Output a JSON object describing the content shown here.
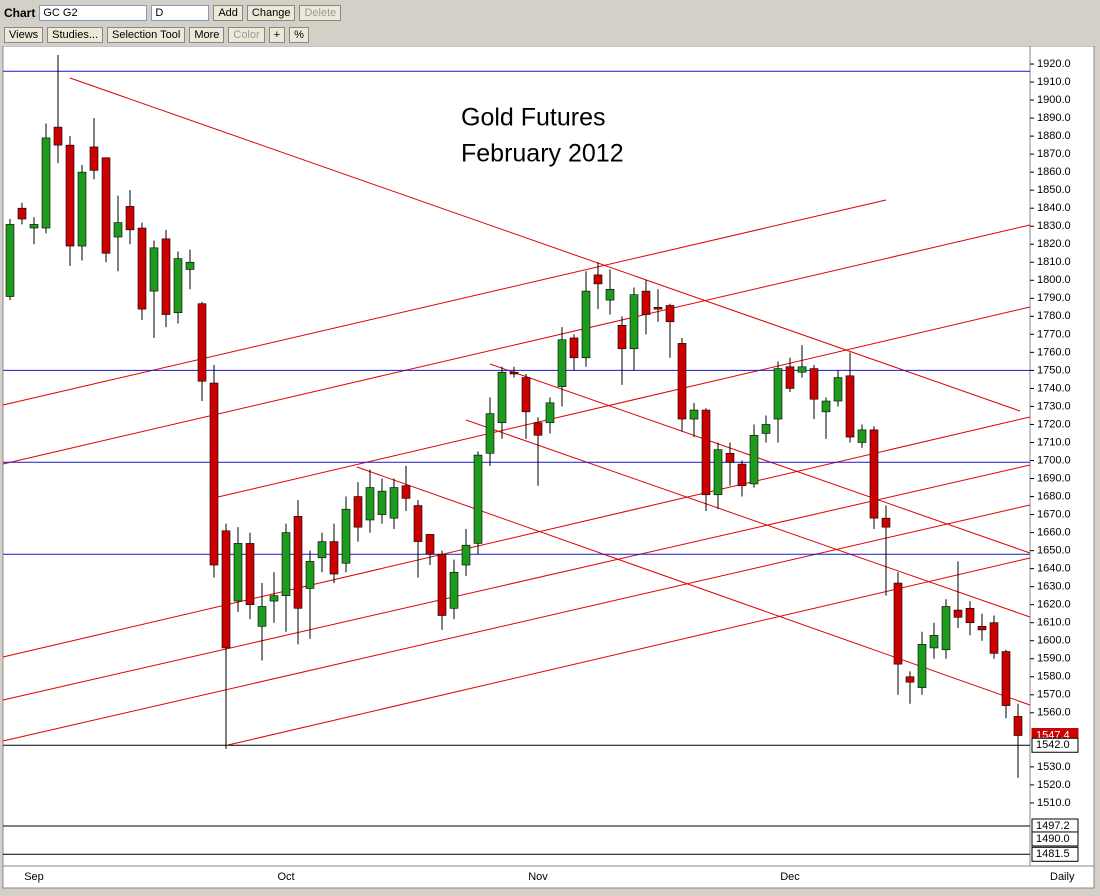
{
  "toolbar": {
    "chart_label": "Chart",
    "symbol": "GC G2",
    "period": "D",
    "buttons": [
      "Add",
      "Change",
      "Delete"
    ],
    "tools": [
      "Views",
      "Studies...",
      "Selection Tool",
      "More",
      "Color",
      "+",
      "%"
    ]
  },
  "chart_data": {
    "type": "candlestick",
    "annotations": [
      "Gold Futures",
      "February 2012"
    ],
    "categories": [
      null,
      null,
      "Sep",
      null,
      null,
      null,
      null,
      null,
      null,
      null,
      null,
      null,
      null,
      null,
      null,
      null,
      null,
      null,
      null,
      null,
      null,
      null,
      null,
      "Oct",
      null,
      null,
      null,
      null,
      null,
      null,
      null,
      null,
      null,
      null,
      null,
      null,
      null,
      null,
      null,
      null,
      null,
      null,
      null,
      null,
      "Nov",
      null,
      null,
      null,
      null,
      null,
      null,
      null,
      null,
      null,
      null,
      null,
      null,
      null,
      null,
      null,
      null,
      null,
      null,
      null,
      null,
      "Dec",
      null,
      null,
      null,
      null,
      null,
      null,
      null,
      null,
      null,
      null,
      null,
      null,
      null,
      null,
      null,
      null,
      null,
      null,
      null
    ],
    "period_label": "Daily",
    "up_color": "#1e9a1e",
    "down_color": "#cc0000",
    "open": [
      1791,
      1840,
      1829,
      1829,
      1885,
      1875,
      1819,
      1874,
      1868,
      1824,
      1841,
      1829,
      1794,
      1823,
      1782,
      1806,
      1787,
      1743,
      1661,
      1622,
      1654,
      1608,
      1622,
      1625,
      1669,
      1629,
      1646,
      1655,
      1643,
      1680,
      1667,
      1670,
      1668,
      1686,
      1675,
      1659,
      1648,
      1618,
      1642,
      1654,
      1704,
      1721,
      1749,
      1746,
      1721,
      1721,
      1741,
      1768,
      1757,
      1803,
      1789,
      1775,
      1762,
      1794,
      1785,
      1786,
      1765,
      1723,
      1728,
      1681,
      1704,
      1698,
      1687,
      1715,
      1723,
      1752,
      1749,
      1751,
      1727,
      1733,
      1747,
      1710,
      1717,
      1668,
      1632,
      1580,
      1574,
      1596,
      1595,
      1617,
      1618,
      1608,
      1610,
      1594,
      1558
    ],
    "high": [
      1834,
      1843,
      1835,
      1887,
      1925,
      1880,
      1864,
      1890,
      1868,
      1847,
      1850,
      1832,
      1822,
      1828,
      1816,
      1817,
      1788,
      1753,
      1665,
      1663,
      1660,
      1632,
      1638,
      1665,
      1678,
      1650,
      1660,
      1665,
      1680,
      1688,
      1695,
      1690,
      1690,
      1697,
      1678,
      1659,
      1650,
      1645,
      1662,
      1705,
      1735,
      1752,
      1752,
      1748,
      1724,
      1735,
      1774,
      1770,
      1805,
      1810,
      1806,
      1780,
      1796,
      1800,
      1795,
      1787,
      1768,
      1732,
      1729,
      1710,
      1710,
      1700,
      1720,
      1725,
      1755,
      1757,
      1764,
      1753,
      1735,
      1750,
      1760,
      1720,
      1719,
      1675,
      1638,
      1583,
      1605,
      1610,
      1623,
      1644,
      1622,
      1615,
      1614,
      1595,
      1565
    ],
    "low": [
      1789,
      1831,
      1820,
      1826,
      1865,
      1808,
      1811,
      1856,
      1810,
      1805,
      1820,
      1778,
      1768,
      1774,
      1776,
      1795,
      1733,
      1635,
      1540,
      1616,
      1612,
      1589,
      1610,
      1605,
      1598,
      1601,
      1638,
      1632,
      1638,
      1655,
      1660,
      1665,
      1662,
      1672,
      1635,
      1642,
      1606,
      1612,
      1636,
      1648,
      1697,
      1712,
      1746,
      1712,
      1686,
      1715,
      1730,
      1750,
      1752,
      1784,
      1781,
      1742,
      1750,
      1770,
      1777,
      1757,
      1716,
      1713,
      1672,
      1673,
      1686,
      1680,
      1685,
      1710,
      1710,
      1738,
      1746,
      1723,
      1712,
      1730,
      1710,
      1707,
      1662,
      1625,
      1570,
      1565,
      1570,
      1590,
      1590,
      1607,
      1603,
      1600,
      1590,
      1557,
      1524
    ],
    "close": [
      1831,
      1834,
      1831,
      1879,
      1875,
      1819,
      1860,
      1861,
      1815,
      1832,
      1828,
      1784,
      1818,
      1781,
      1812,
      1810,
      1744,
      1642,
      1596,
      1654,
      1620,
      1619,
      1625,
      1660,
      1618,
      1644,
      1655,
      1637,
      1673,
      1663,
      1685,
      1683,
      1685,
      1679,
      1655,
      1648,
      1614,
      1638,
      1653,
      1703,
      1726,
      1749,
      1748,
      1727,
      1714,
      1732,
      1767,
      1757,
      1794,
      1798,
      1795,
      1762,
      1792,
      1781,
      1784,
      1777,
      1723,
      1728,
      1681,
      1706,
      1699,
      1686,
      1714,
      1720,
      1751,
      1740,
      1752,
      1734,
      1733,
      1746,
      1713,
      1717,
      1668,
      1663,
      1587,
      1577,
      1598,
      1603,
      1619,
      1613,
      1610,
      1606,
      1593,
      1564,
      1547.4
    ],
    "ylim": [
      1475,
      1930
    ],
    "yticks": [
      {
        "value": 1510,
        "label": "1510.0"
      },
      {
        "value": 1520,
        "label": "1520.0"
      },
      {
        "value": 1530,
        "label": "1530.0"
      },
      {
        "value": 1560,
        "label": "1560.0"
      },
      {
        "value": 1570,
        "label": "1570.0"
      },
      {
        "value": 1580,
        "label": "1580.0"
      },
      {
        "value": 1590,
        "label": "1590.0"
      },
      {
        "value": 1600,
        "label": "1600.0"
      },
      {
        "value": 1610,
        "label": "1610.0"
      },
      {
        "value": 1620,
        "label": "1620.0"
      },
      {
        "value": 1630,
        "label": "1630.0"
      },
      {
        "value": 1640,
        "label": "1640.0"
      },
      {
        "value": 1650,
        "label": "1650.0"
      },
      {
        "value": 1660,
        "label": "1660.0"
      },
      {
        "value": 1670,
        "label": "1670.0"
      },
      {
        "value": 1680,
        "label": "1680.0"
      },
      {
        "value": 1690,
        "label": "1690.0"
      },
      {
        "value": 1700,
        "label": "1700.0"
      },
      {
        "value": 1710,
        "label": "1710.0"
      },
      {
        "value": 1720,
        "label": "1720.0"
      },
      {
        "value": 1730,
        "label": "1730.0"
      },
      {
        "value": 1740,
        "label": "1740.0"
      },
      {
        "value": 1750,
        "label": "1750.0"
      },
      {
        "value": 1760,
        "label": "1760.0"
      },
      {
        "value": 1770,
        "label": "1770.0"
      },
      {
        "value": 1780,
        "label": "1780.0"
      },
      {
        "value": 1790,
        "label": "1790.0"
      },
      {
        "value": 1800,
        "label": "1800.0"
      },
      {
        "value": 1810,
        "label": "1810.0"
      },
      {
        "value": 1820,
        "label": "1820.0"
      },
      {
        "value": 1830,
        "label": "1830.0"
      },
      {
        "value": 1840,
        "label": "1840.0"
      },
      {
        "value": 1850,
        "label": "1850.0"
      },
      {
        "value": 1860,
        "label": "1860.0"
      },
      {
        "value": 1870,
        "label": "1870.0"
      },
      {
        "value": 1880,
        "label": "1880.0"
      },
      {
        "value": 1890,
        "label": "1890.0"
      },
      {
        "value": 1900,
        "label": "1900.0"
      },
      {
        "value": 1910,
        "label": "1910.0"
      },
      {
        "value": 1920,
        "label": "1920.0"
      }
    ],
    "hlines": {
      "color": "#1a1acc",
      "values": [
        1916,
        1750,
        1699,
        1648
      ]
    },
    "levels": [
      {
        "value": 1547.4,
        "label": "1547.4",
        "color": "#cc0000",
        "line": false
      },
      {
        "value": 1542,
        "label": "1542.0",
        "color": "#000000",
        "line": true
      },
      {
        "value": 1497.2,
        "label": "1497.2",
        "color": "#000000",
        "line": true
      },
      {
        "value": 1490,
        "label": "1490.0",
        "color": "#000000",
        "line": false
      },
      {
        "value": 1481.5,
        "label": "1481.5",
        "color": "#000000",
        "line": true
      }
    ]
  }
}
